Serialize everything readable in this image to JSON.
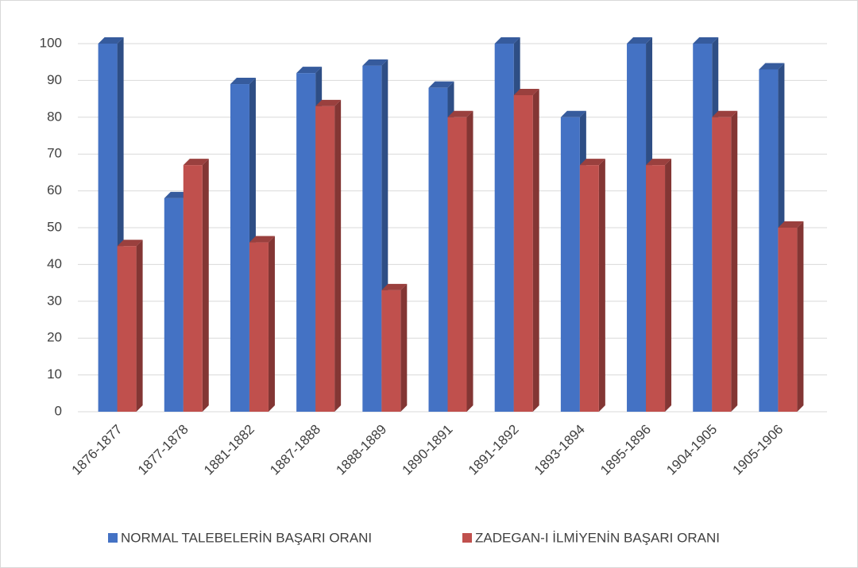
{
  "chart_data": {
    "type": "bar",
    "categories": [
      "1876-1877",
      "1877-1878",
      "1881-1882",
      "1887-1888",
      "1888-1889",
      "1890-1891",
      "1891-1892",
      "1893-1894",
      "1895-1896",
      "1904-1905",
      "1905-1906"
    ],
    "series": [
      {
        "name": "NORMAL TALEBELERİN BAŞARI ORANI",
        "color": "#4472c4",
        "values": [
          100,
          58,
          89,
          92,
          94,
          88,
          100,
          80,
          100,
          100,
          93
        ]
      },
      {
        "name": "ZADEGAN-I İLMİYENİN BAŞARI ORANI",
        "color": "#c0504d",
        "values": [
          45,
          67,
          46,
          83,
          33,
          80,
          86,
          67,
          67,
          80,
          50
        ]
      }
    ],
    "ylim": [
      0,
      100
    ],
    "yticks": [
      0,
      10,
      20,
      30,
      40,
      50,
      60,
      70,
      80,
      90,
      100
    ],
    "grid": true,
    "legend": "bottom"
  }
}
